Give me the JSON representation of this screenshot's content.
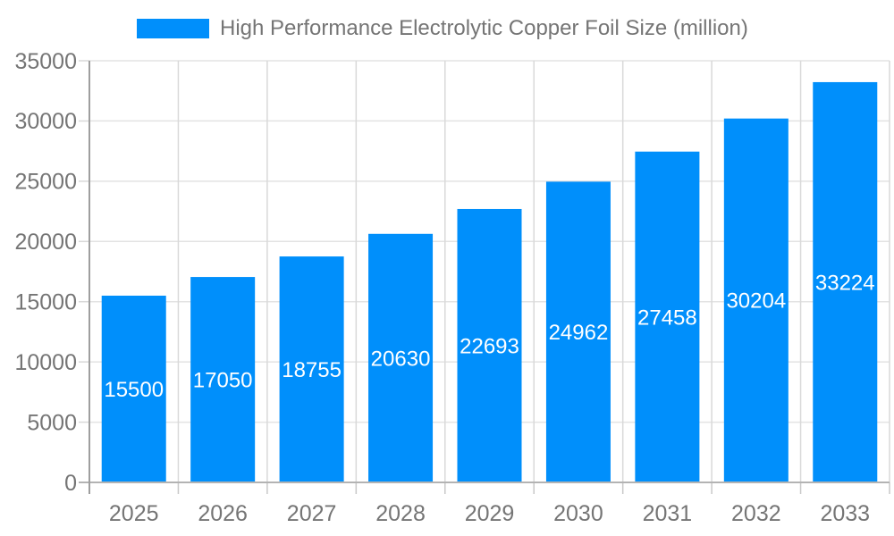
{
  "page": {
    "background": "#ffffff"
  },
  "legend": {
    "label": "High Performance Electrolytic Copper Foil Size (million)",
    "swatch_color": "#008ffb",
    "text_color": "#757575"
  },
  "chart_data": {
    "type": "bar",
    "title": "High Performance Electrolytic Copper Foil Size (million)",
    "categories": [
      "2025",
      "2026",
      "2027",
      "2028",
      "2029",
      "2030",
      "2031",
      "2032",
      "2033"
    ],
    "values": [
      15500,
      17050,
      18755,
      20630,
      22693,
      24962,
      27458,
      30204,
      33224
    ],
    "xlabel": "",
    "ylabel": "",
    "ylim": [
      0,
      35000
    ],
    "yticks": [
      0,
      5000,
      10000,
      15000,
      20000,
      25000,
      30000,
      35000
    ],
    "grid": "on",
    "legend_position": "top",
    "bar_color": "#008ffb",
    "bar_label_color": "#ffffff",
    "axis_text_color": "#757575",
    "h_gridline_color": "#e3e3e3",
    "v_gridline_color": "#d9d9d9",
    "tick_color": "#c9c9c9",
    "x_axis_color": "#b3b3b3",
    "y_axis_color": "#9e9e9e"
  }
}
